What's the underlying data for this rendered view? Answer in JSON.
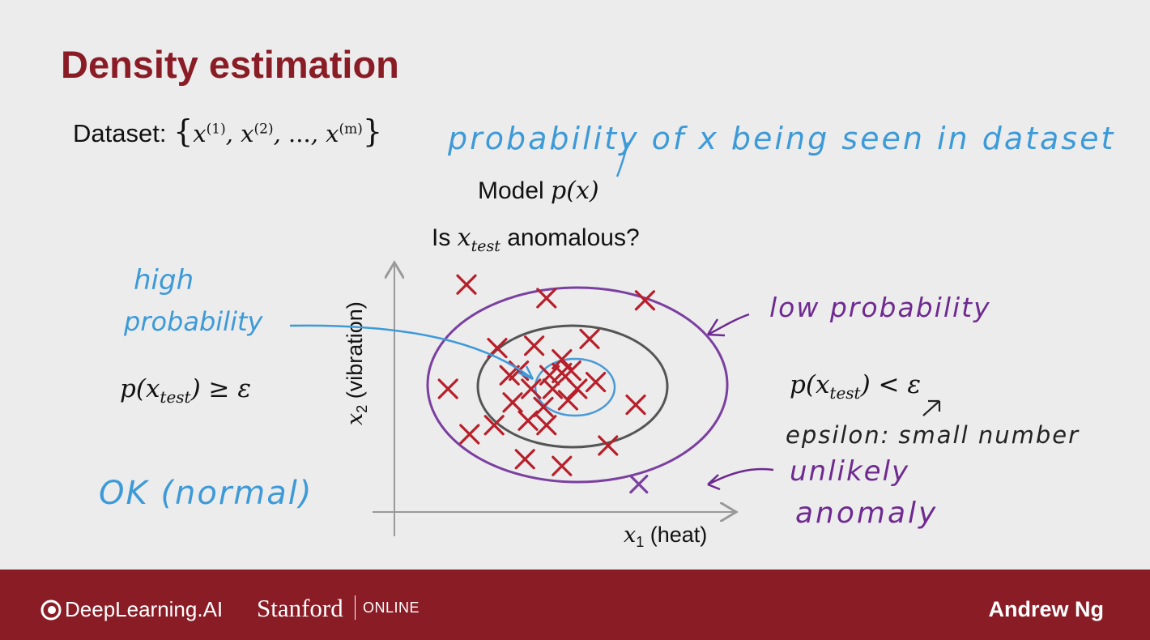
{
  "slide": {
    "title": "Density estimation",
    "dataset_label": "Dataset:",
    "dataset_set": "x(1), x(2), ..., x(m)",
    "dataset_terms": [
      "x",
      "(1)",
      "x",
      "(2)",
      "...",
      "x",
      "(m)"
    ],
    "model_prefix": "Model ",
    "model_expr": "p(x)",
    "question_prefix": "Is ",
    "question_var": "x",
    "question_sub": "test",
    "question_suffix": " anomalous?"
  },
  "diagram": {
    "x_axis_label": "x1 (heat)",
    "x_axis_var": "x",
    "x_axis_sub": "1",
    "x_axis_text": " (heat)",
    "y_axis_label": "x2 (vibration)",
    "y_axis_var": "x",
    "y_axis_sub": "2",
    "y_axis_text": " (vibration)",
    "left_formula": "p(xtest) ≥ ε",
    "left_formula_parts": [
      "p(x",
      "test",
      ") ≥ ε"
    ],
    "right_formula": "p(xtest) < ε",
    "right_formula_parts": [
      "p(x",
      "test",
      ") < ε"
    ],
    "annotations": {
      "probability_note": "probability of x being seen in dataset",
      "high_probability_line1": "high",
      "high_probability_line2": "probability",
      "low_probability": "low probability",
      "epsilon_note": "epsilon: small number",
      "epsilon_word": "epsilon",
      "epsilon_colon": ":",
      "small_number": "small number",
      "unlikely": "unlikely",
      "anomaly": "anomaly",
      "ok_normal": "OK (normal)"
    },
    "colors": {
      "title": "#8a1c26",
      "marker": "#b81f2a",
      "handwriting_blue": "#3d9ad9",
      "handwriting_purple": "#6e2a90",
      "outer_ellipse": "#7b3fa0",
      "middle_ellipse": "#555555",
      "inner_ellipse": "#4a9ad6",
      "axis": "#999999",
      "outlier": "#7b3fa0"
    },
    "data_points": [
      [
        0.2,
        0.96
      ],
      [
        0.46,
        0.9
      ],
      [
        0.78,
        0.89
      ],
      [
        0.3,
        0.68
      ],
      [
        0.42,
        0.69
      ],
      [
        0.51,
        0.63
      ],
      [
        0.6,
        0.72
      ],
      [
        0.37,
        0.58
      ],
      [
        0.47,
        0.56
      ],
      [
        0.51,
        0.57
      ],
      [
        0.54,
        0.58
      ],
      [
        0.34,
        0.56
      ],
      [
        0.41,
        0.5
      ],
      [
        0.48,
        0.5
      ],
      [
        0.56,
        0.5
      ],
      [
        0.62,
        0.53
      ],
      [
        0.14,
        0.5
      ],
      [
        0.35,
        0.44
      ],
      [
        0.45,
        0.42
      ],
      [
        0.53,
        0.45
      ],
      [
        0.75,
        0.43
      ],
      [
        0.4,
        0.36
      ],
      [
        0.46,
        0.34
      ],
      [
        0.29,
        0.34
      ],
      [
        0.21,
        0.3
      ],
      [
        0.66,
        0.25
      ],
      [
        0.39,
        0.19
      ],
      [
        0.51,
        0.16
      ]
    ],
    "outlier_point": [
      0.76,
      0.08
    ]
  },
  "footer": {
    "logo_text": "DeepLearning.AI",
    "stanford": "Stanford",
    "online": "ONLINE",
    "presenter": "Andrew Ng"
  }
}
